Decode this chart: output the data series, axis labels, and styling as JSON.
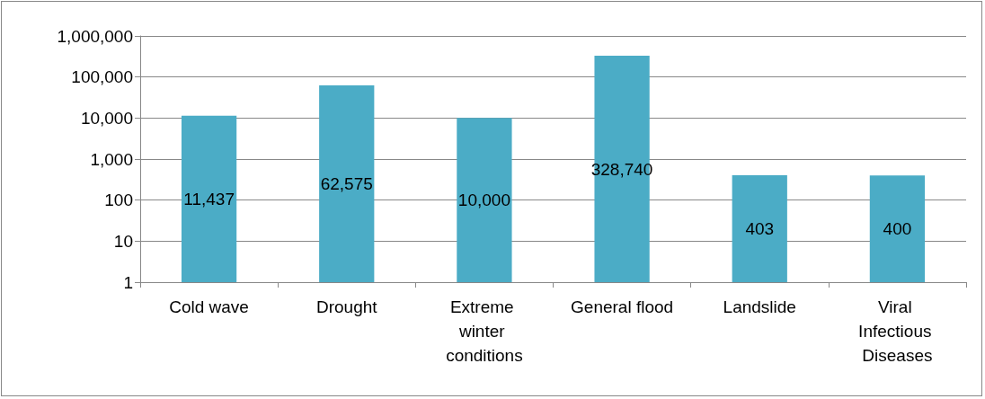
{
  "chart_data": {
    "type": "bar",
    "categories": [
      "Cold wave",
      "Drought",
      "Extreme winter conditions",
      "General flood",
      "Landslide",
      "Viral Infectious Diseases"
    ],
    "values": [
      11437,
      62575,
      10000,
      328740,
      403,
      400
    ],
    "value_labels": [
      "11,437",
      "62,575",
      "10,000",
      "328,740",
      "403",
      "400"
    ],
    "color": "#4bacc6",
    "log": "y",
    "ylim": [
      1,
      1000000
    ],
    "yticks": [
      1,
      10,
      100,
      {
        "value": 1000,
        "label": "1,000"
      },
      {
        "value": 10000,
        "label": "10,000"
      },
      {
        "value": 100000,
        "label": "100,000"
      },
      {
        "value": 1000000,
        "label": "1,000,000"
      }
    ],
    "grid": "y"
  }
}
